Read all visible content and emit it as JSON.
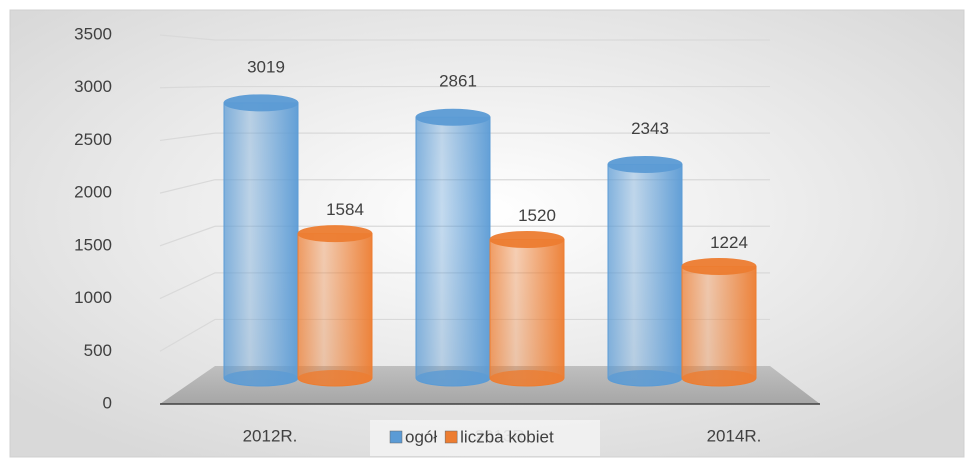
{
  "chart_data": {
    "type": "bar3d",
    "categories": [
      "2012R.",
      "2013R.",
      "2014R."
    ],
    "series": [
      {
        "name": "ogół",
        "color": "#5b9bd5",
        "values": [
          3019,
          2861,
          2343
        ]
      },
      {
        "name": "liczba kobiet",
        "color": "#ed7d31",
        "values": [
          1584,
          1520,
          1224
        ]
      }
    ],
    "ylim": [
      0,
      3500
    ],
    "yticks": [
      0,
      500,
      1000,
      1500,
      2000,
      2500,
      3000,
      3500
    ],
    "grid": true,
    "legend": "bottom"
  }
}
